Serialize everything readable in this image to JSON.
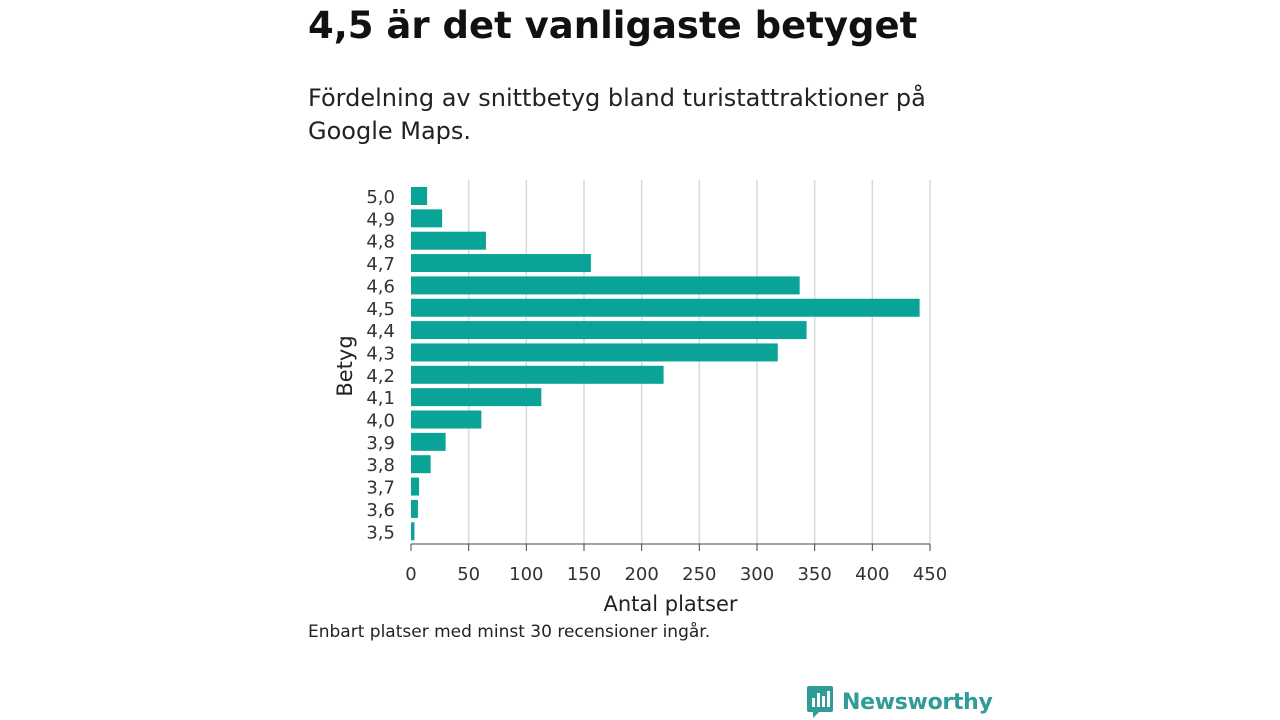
{
  "title": "4,5 är det vanligaste betyget",
  "subtitle": "Fördelning av snittbetyg bland turistattraktioner på Google Maps.",
  "footnote": "Enbart platser med minst 30 recensioner ingår.",
  "brand": {
    "name": "Newsworthy",
    "icon": "newsworthy-logo-icon",
    "color": "#2f9c97"
  },
  "chart_data": {
    "type": "bar",
    "orientation": "horizontal",
    "categories": [
      "5,0",
      "4,9",
      "4,8",
      "4,7",
      "4,6",
      "4,5",
      "4,4",
      "4,3",
      "4,2",
      "4,1",
      "4,0",
      "3,9",
      "3,8",
      "3,7",
      "3,6",
      "3,5"
    ],
    "values": [
      14,
      27,
      65,
      156,
      337,
      441,
      343,
      318,
      219,
      113,
      61,
      30,
      17,
      7,
      6,
      3
    ],
    "xlabel": "Antal platser",
    "ylabel": "Betyg",
    "xlim": [
      0,
      450
    ],
    "xticks": [
      0,
      50,
      100,
      150,
      200,
      250,
      300,
      350,
      400,
      450
    ],
    "grid": "vertical",
    "bar_color": "#0aa397",
    "grid_color": "#d9d9d9"
  }
}
